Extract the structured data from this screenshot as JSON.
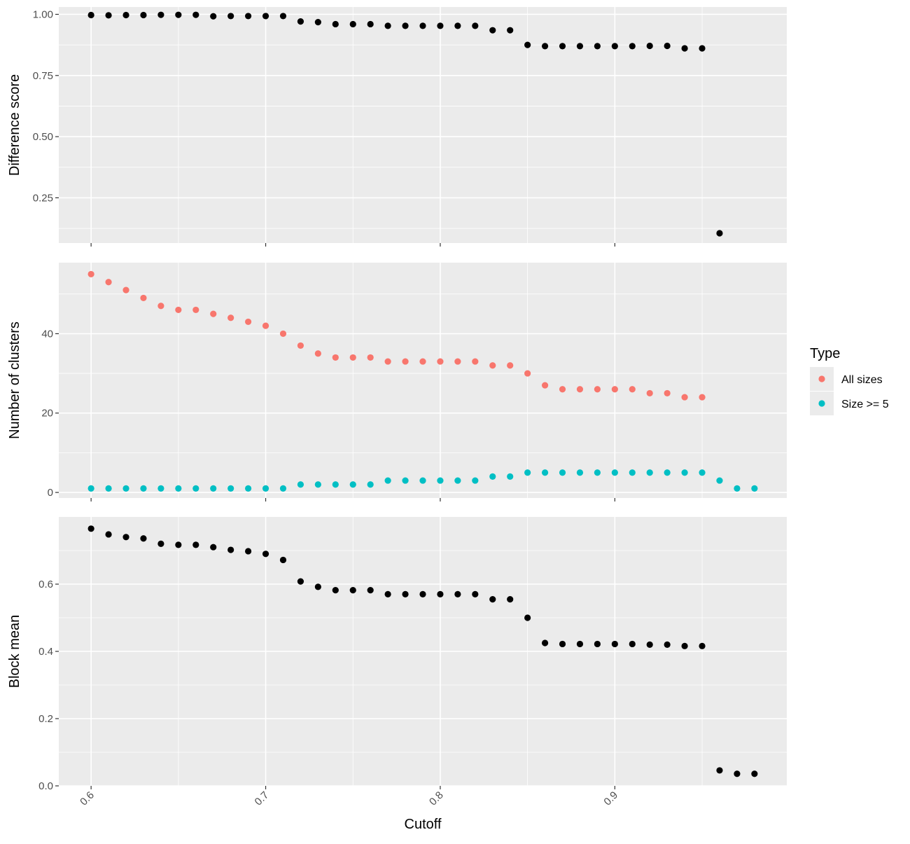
{
  "chart_data": {
    "type": "scatter",
    "xlabel": "Cutoff",
    "x_ticks": [
      "0.6",
      "0.7",
      "0.8",
      "0.9"
    ],
    "xlim": [
      0.5815,
      0.9985
    ],
    "grid": true,
    "panels": [
      {
        "ylabel": "Difference score",
        "ylim": [
          0.065,
          1.03
        ],
        "y_ticks": [
          "0.25",
          "0.50",
          "0.75",
          "1.00"
        ],
        "series": [
          {
            "color": "#000000",
            "x": [
              0.6,
              0.61,
              0.62,
              0.63,
              0.64,
              0.65,
              0.66,
              0.67,
              0.68,
              0.69,
              0.7,
              0.71,
              0.72,
              0.73,
              0.74,
              0.75,
              0.76,
              0.77,
              0.78,
              0.79,
              0.8,
              0.81,
              0.82,
              0.83,
              0.84,
              0.85,
              0.86,
              0.87,
              0.88,
              0.89,
              0.9,
              0.91,
              0.92,
              0.93,
              0.94,
              0.95,
              0.96
            ],
            "y": [
              0.997,
              0.996,
              0.997,
              0.997,
              0.998,
              0.998,
              0.998,
              0.992,
              0.993,
              0.993,
              0.993,
              0.993,
              0.971,
              0.968,
              0.96,
              0.96,
              0.96,
              0.953,
              0.953,
              0.953,
              0.953,
              0.953,
              0.953,
              0.935,
              0.935,
              0.875,
              0.87,
              0.87,
              0.87,
              0.87,
              0.87,
              0.87,
              0.871,
              0.871,
              0.861,
              0.861,
              0.105
            ]
          }
        ]
      },
      {
        "ylabel": "Number of clusters",
        "ylim": [
          -1.4,
          57.9
        ],
        "y_ticks": [
          "0",
          "20",
          "40"
        ],
        "series": [
          {
            "name": "All sizes",
            "color": "#F8766D",
            "x": [
              0.6,
              0.61,
              0.62,
              0.63,
              0.64,
              0.65,
              0.66,
              0.67,
              0.68,
              0.69,
              0.7,
              0.71,
              0.72,
              0.73,
              0.74,
              0.75,
              0.76,
              0.77,
              0.78,
              0.79,
              0.8,
              0.81,
              0.82,
              0.83,
              0.84,
              0.85,
              0.86,
              0.87,
              0.88,
              0.89,
              0.9,
              0.91,
              0.92,
              0.93,
              0.94,
              0.95
            ],
            "y": [
              55,
              53,
              51,
              49,
              47,
              46,
              46,
              45,
              44,
              43,
              42,
              40,
              37,
              35,
              34,
              34,
              34,
              33,
              33,
              33,
              33,
              33,
              33,
              32,
              32,
              30,
              27,
              26,
              26,
              26,
              26,
              26,
              25,
              25,
              24,
              24
            ]
          },
          {
            "name": "Size >= 5",
            "color": "#00BFC4",
            "x": [
              0.6,
              0.61,
              0.62,
              0.63,
              0.64,
              0.65,
              0.66,
              0.67,
              0.68,
              0.69,
              0.7,
              0.71,
              0.72,
              0.73,
              0.74,
              0.75,
              0.76,
              0.77,
              0.78,
              0.79,
              0.8,
              0.81,
              0.82,
              0.83,
              0.84,
              0.85,
              0.86,
              0.87,
              0.88,
              0.89,
              0.9,
              0.91,
              0.92,
              0.93,
              0.94,
              0.95,
              0.96,
              0.97,
              0.98
            ],
            "y": [
              1,
              1,
              1,
              1,
              1,
              1,
              1,
              1,
              1,
              1,
              1,
              1,
              2,
              2,
              2,
              2,
              2,
              3,
              3,
              3,
              3,
              3,
              3,
              4,
              4,
              5,
              5,
              5,
              5,
              5,
              5,
              5,
              5,
              5,
              5,
              5,
              3,
              1,
              1
            ]
          }
        ]
      },
      {
        "ylabel": "Block mean",
        "ylim": [
          0,
          0.8
        ],
        "y_ticks": [
          "0.0",
          "0.2",
          "0.4",
          "0.6"
        ],
        "series": [
          {
            "color": "#000000",
            "x": [
              0.6,
              0.61,
              0.62,
              0.63,
              0.64,
              0.65,
              0.66,
              0.67,
              0.68,
              0.69,
              0.7,
              0.71,
              0.72,
              0.73,
              0.74,
              0.75,
              0.76,
              0.77,
              0.78,
              0.79,
              0.8,
              0.81,
              0.82,
              0.83,
              0.84,
              0.85,
              0.86,
              0.87,
              0.88,
              0.89,
              0.9,
              0.91,
              0.92,
              0.93,
              0.94,
              0.95,
              0.96,
              0.97,
              0.98
            ],
            "y": [
              0.765,
              0.748,
              0.74,
              0.736,
              0.72,
              0.717,
              0.717,
              0.71,
              0.702,
              0.698,
              0.69,
              0.672,
              0.608,
              0.592,
              0.582,
              0.582,
              0.582,
              0.57,
              0.57,
              0.57,
              0.57,
              0.57,
              0.57,
              0.555,
              0.555,
              0.5,
              0.425,
              0.422,
              0.422,
              0.422,
              0.422,
              0.422,
              0.42,
              0.42,
              0.416,
              0.416,
              0.046,
              0.036,
              0.036
            ]
          }
        ]
      }
    ],
    "legend": {
      "title": "Type",
      "position": "right",
      "entries": [
        {
          "label": "All sizes",
          "color": "#F8766D"
        },
        {
          "label": "Size >= 5",
          "color": "#00BFC4"
        }
      ]
    }
  }
}
